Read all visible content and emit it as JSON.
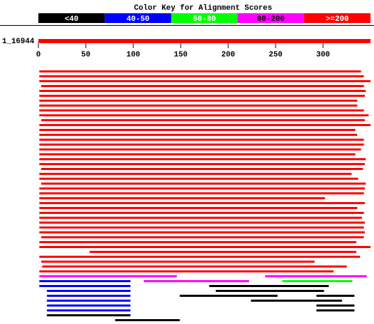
{
  "chart_data": {
    "type": "alignment",
    "title": "Color Key for Alignment Scores",
    "key": [
      {
        "label": "<40",
        "color": "#000000"
      },
      {
        "label": "40-50",
        "color": "#0000ff"
      },
      {
        "label": "50-80",
        "color": "#00ff00"
      },
      {
        "label": "80-200",
        "color": "#ff00ff"
      },
      {
        "label": ">=200",
        "color": "#ff0000"
      }
    ],
    "query_label": "1_16944",
    "query_color": "#ff0000",
    "xlim": [
      0,
      350
    ],
    "xticks": [
      0,
      50,
      100,
      150,
      200,
      250,
      300
    ],
    "rows": [
      [
        {
          "start": 1,
          "end": 340,
          "color": "#ff0000"
        }
      ],
      [
        {
          "start": 1,
          "end": 343,
          "color": "#ff0000"
        }
      ],
      [
        {
          "start": 1,
          "end": 350,
          "color": "#ff0000"
        }
      ],
      [
        {
          "start": 3,
          "end": 343,
          "color": "#ff0000"
        }
      ],
      [
        {
          "start": 1,
          "end": 345,
          "color": "#ff0000"
        }
      ],
      [
        {
          "start": 1,
          "end": 344,
          "color": "#ff0000"
        }
      ],
      [
        {
          "start": 1,
          "end": 336,
          "color": "#ff0000"
        }
      ],
      [
        {
          "start": 1,
          "end": 336,
          "color": "#ff0000"
        }
      ],
      [
        {
          "start": 1,
          "end": 343,
          "color": "#ff0000"
        }
      ],
      [
        {
          "start": 1,
          "end": 348,
          "color": "#ff0000"
        }
      ],
      [
        {
          "start": 3,
          "end": 344,
          "color": "#ff0000"
        }
      ],
      [
        {
          "start": 1,
          "end": 350,
          "color": "#ff0000"
        }
      ],
      [
        {
          "start": 1,
          "end": 334,
          "color": "#ff0000"
        }
      ],
      [
        {
          "start": 1,
          "end": 336,
          "color": "#ff0000"
        }
      ],
      [
        {
          "start": 1,
          "end": 343,
          "color": "#ff0000"
        }
      ],
      [
        {
          "start": 1,
          "end": 343,
          "color": "#ff0000"
        }
      ],
      [
        {
          "start": 1,
          "end": 340,
          "color": "#ff0000"
        }
      ],
      [
        {
          "start": 1,
          "end": 334,
          "color": "#ff0000"
        }
      ],
      [
        {
          "start": 1,
          "end": 345,
          "color": "#ff0000"
        }
      ],
      [
        {
          "start": 1,
          "end": 344,
          "color": "#ff0000"
        }
      ],
      [
        {
          "start": 3,
          "end": 342,
          "color": "#ff0000"
        }
      ],
      [
        {
          "start": 1,
          "end": 330,
          "color": "#ff0000"
        }
      ],
      [
        {
          "start": 1,
          "end": 337,
          "color": "#ff0000"
        }
      ],
      [
        {
          "start": 3,
          "end": 345,
          "color": "#ff0000"
        }
      ],
      [
        {
          "start": 1,
          "end": 344,
          "color": "#ff0000"
        }
      ],
      [
        {
          "start": 1,
          "end": 343,
          "color": "#ff0000"
        }
      ],
      [
        {
          "start": 1,
          "end": 302,
          "color": "#ff0000"
        }
      ],
      [
        {
          "start": 1,
          "end": 344,
          "color": "#ff0000"
        }
      ],
      [
        {
          "start": 1,
          "end": 336,
          "color": "#ff0000"
        }
      ],
      [
        {
          "start": 1,
          "end": 343,
          "color": "#ff0000"
        }
      ],
      [
        {
          "start": 1,
          "end": 341,
          "color": "#ff0000"
        }
      ],
      [
        {
          "start": 1,
          "end": 344,
          "color": "#ff0000"
        }
      ],
      [
        {
          "start": 1,
          "end": 343,
          "color": "#ff0000"
        }
      ],
      [
        {
          "start": 1,
          "end": 344,
          "color": "#ff0000"
        }
      ],
      [
        {
          "start": 3,
          "end": 343,
          "color": "#ff0000"
        }
      ],
      [
        {
          "start": 1,
          "end": 335,
          "color": "#ff0000"
        }
      ],
      [
        {
          "start": 1,
          "end": 350,
          "color": "#ff0000"
        }
      ],
      [
        {
          "start": 54,
          "end": 335,
          "color": "#ff0000"
        }
      ],
      [
        {
          "start": 1,
          "end": 339,
          "color": "#ff0000"
        }
      ],
      [
        {
          "start": 3,
          "end": 291,
          "color": "#ff0000"
        }
      ],
      [
        {
          "start": 4,
          "end": 325,
          "color": "#ff0000"
        }
      ],
      [
        {
          "start": 1,
          "end": 311,
          "color": "#ff0000"
        }
      ],
      [
        {
          "start": 1,
          "end": 146,
          "color": "#ff00ff"
        },
        {
          "start": 239,
          "end": 346,
          "color": "#ff00ff"
        }
      ],
      [
        {
          "start": 1,
          "end": 97,
          "color": "#0000ff"
        },
        {
          "start": 111,
          "end": 222,
          "color": "#ff00ff"
        },
        {
          "start": 257,
          "end": 331,
          "color": "#00ff00"
        }
      ],
      [
        {
          "start": 1,
          "end": 97,
          "color": "#0000ff"
        },
        {
          "start": 180,
          "end": 306,
          "color": "#000000"
        }
      ],
      [
        {
          "start": 9,
          "end": 97,
          "color": "#0000ff"
        },
        {
          "start": 187,
          "end": 301,
          "color": "#000000"
        }
      ],
      [
        {
          "start": 9,
          "end": 97,
          "color": "#0000ff"
        },
        {
          "start": 149,
          "end": 252,
          "color": "#000000"
        },
        {
          "start": 293,
          "end": 333,
          "color": "#000000"
        }
      ],
      [
        {
          "start": 9,
          "end": 97,
          "color": "#0000ff"
        },
        {
          "start": 224,
          "end": 320,
          "color": "#000000"
        }
      ],
      [
        {
          "start": 9,
          "end": 97,
          "color": "#0000ff"
        },
        {
          "start": 293,
          "end": 333,
          "color": "#000000"
        }
      ],
      [
        {
          "start": 9,
          "end": 97,
          "color": "#0000ff"
        },
        {
          "start": 293,
          "end": 333,
          "color": "#000000"
        }
      ],
      [
        {
          "start": 9,
          "end": 97,
          "color": "#000000"
        }
      ],
      [
        {
          "start": 81,
          "end": 149,
          "color": "#000000"
        }
      ]
    ]
  }
}
